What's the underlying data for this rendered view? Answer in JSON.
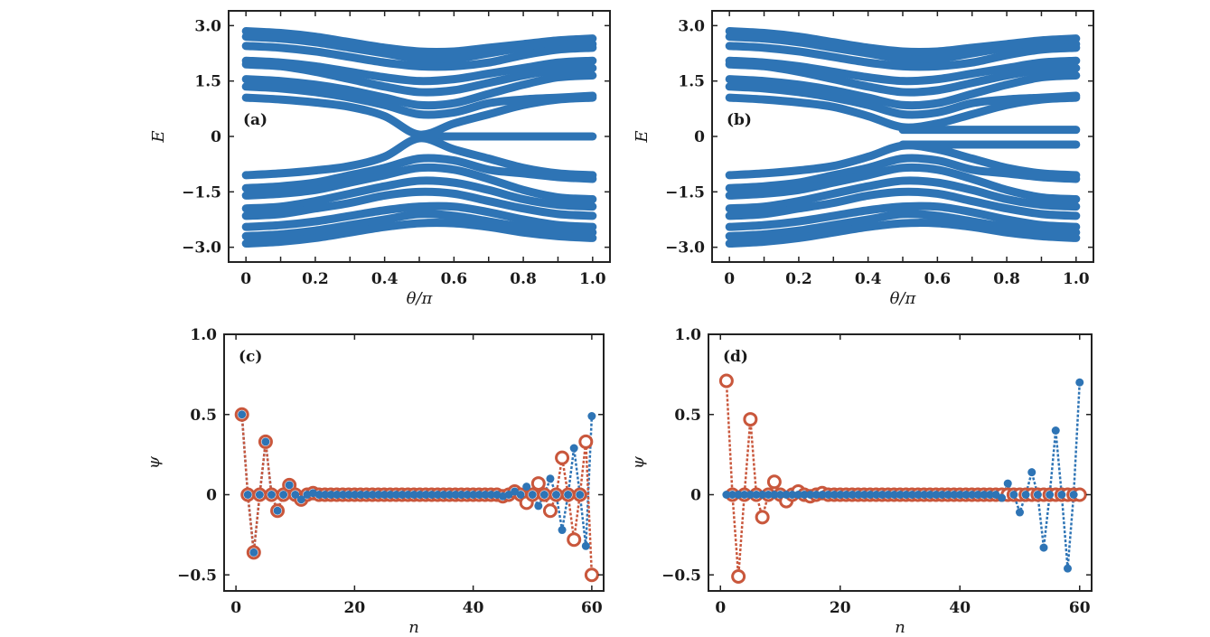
{
  "colors": {
    "blue": "#2e74b5",
    "orange": "#c9573c",
    "axis": "#222222"
  },
  "chart_data": [
    {
      "id": "a",
      "type": "line",
      "panel_label": "(a)",
      "xlabel": "θ/π",
      "ylabel": "E",
      "xlim": [
        -0.05,
        1.05
      ],
      "ylim": [
        -3.4,
        3.4
      ],
      "xticks": [
        0,
        0.2,
        0.4,
        0.6,
        0.8,
        1.0
      ],
      "xtick_labels": [
        "0",
        "0.2",
        "0.4",
        "0.6",
        "0.8",
        "1.0"
      ],
      "yticks": [
        3.0,
        1.5,
        0,
        -1.5,
        -3.0
      ],
      "ytick_labels": [
        "3.0",
        "1.5",
        "0",
        "−1.5",
        "−3.0"
      ],
      "x": [
        0,
        0.1,
        0.2,
        0.3,
        0.4,
        0.5,
        0.6,
        0.7,
        0.8,
        0.9,
        1.0
      ],
      "series": [
        {
          "name": "band1",
          "values": [
            2.85,
            2.8,
            2.7,
            2.55,
            2.4,
            2.3,
            2.3,
            2.4,
            2.5,
            2.6,
            2.65
          ]
        },
        {
          "name": "band2",
          "values": [
            2.7,
            2.65,
            2.55,
            2.4,
            2.25,
            2.1,
            2.1,
            2.25,
            2.4,
            2.5,
            2.5
          ]
        },
        {
          "name": "band3",
          "values": [
            2.45,
            2.4,
            2.3,
            2.15,
            2.0,
            1.9,
            1.9,
            2.0,
            2.2,
            2.35,
            2.4
          ]
        },
        {
          "name": "band4",
          "values": [
            2.05,
            2.0,
            1.9,
            1.75,
            1.6,
            1.5,
            1.55,
            1.7,
            1.85,
            2.0,
            2.05
          ]
        },
        {
          "name": "band5",
          "values": [
            1.95,
            1.9,
            1.75,
            1.55,
            1.35,
            1.2,
            1.25,
            1.45,
            1.65,
            1.8,
            1.85
          ]
        },
        {
          "name": "band6",
          "values": [
            1.55,
            1.5,
            1.4,
            1.25,
            1.05,
            0.85,
            0.9,
            1.15,
            1.4,
            1.6,
            1.65
          ]
        },
        {
          "name": "band7",
          "values": [
            1.35,
            1.3,
            1.2,
            1.05,
            0.85,
            0.6,
            0.65,
            0.9,
            1.0,
            1.05,
            1.1
          ]
        },
        {
          "name": "band8",
          "values": [
            1.05,
            1.0,
            0.92,
            0.8,
            0.55,
            0.05,
            0.35,
            0.6,
            0.85,
            1.0,
            1.05
          ]
        },
        {
          "name": "band9",
          "values": [
            null,
            null,
            null,
            null,
            null,
            0.0,
            0.0,
            0.0,
            0.0,
            0.0,
            0.0
          ]
        },
        {
          "name": "band10",
          "values": [
            -1.05,
            -1.0,
            -0.92,
            -0.8,
            -0.55,
            -0.05,
            -0.35,
            -0.6,
            -0.85,
            -1.0,
            -1.05
          ]
        },
        {
          "name": "band11",
          "values": [
            -1.4,
            -1.35,
            -1.25,
            -1.05,
            -0.85,
            -0.6,
            -0.65,
            -0.9,
            -1.0,
            -1.1,
            -1.15
          ]
        },
        {
          "name": "band12",
          "values": [
            -1.6,
            -1.55,
            -1.45,
            -1.25,
            -1.05,
            -0.85,
            -0.9,
            -1.15,
            -1.45,
            -1.65,
            -1.7
          ]
        },
        {
          "name": "band13",
          "values": [
            -1.95,
            -1.9,
            -1.75,
            -1.55,
            -1.35,
            -1.2,
            -1.25,
            -1.45,
            -1.7,
            -1.85,
            -1.9
          ]
        },
        {
          "name": "band14",
          "values": [
            -2.15,
            -2.1,
            -1.95,
            -1.8,
            -1.6,
            -1.5,
            -1.55,
            -1.75,
            -1.95,
            -2.1,
            -2.15
          ]
        },
        {
          "name": "band15",
          "values": [
            -2.45,
            -2.4,
            -2.3,
            -2.15,
            -2.0,
            -1.9,
            -1.9,
            -2.05,
            -2.25,
            -2.4,
            -2.45
          ]
        },
        {
          "name": "band16",
          "values": [
            -2.7,
            -2.65,
            -2.55,
            -2.4,
            -2.25,
            -2.1,
            -2.15,
            -2.3,
            -2.45,
            -2.55,
            -2.6
          ]
        },
        {
          "name": "band17",
          "values": [
            -2.9,
            -2.85,
            -2.75,
            -2.6,
            -2.45,
            -2.35,
            -2.35,
            -2.45,
            -2.6,
            -2.7,
            -2.75
          ]
        }
      ]
    },
    {
      "id": "b",
      "type": "line",
      "panel_label": "(b)",
      "xlabel": "θ/π",
      "ylabel": "E",
      "xlim": [
        -0.05,
        1.05
      ],
      "ylim": [
        -3.4,
        3.4
      ],
      "xticks": [
        0,
        0.2,
        0.4,
        0.6,
        0.8,
        1.0
      ],
      "xtick_labels": [
        "0",
        "0.2",
        "0.4",
        "0.6",
        "0.8",
        "1.0"
      ],
      "yticks": [
        3.0,
        1.5,
        0,
        -1.5,
        -3.0
      ],
      "ytick_labels": [
        "3.0",
        "1.5",
        "0",
        "−1.5",
        "−3.0"
      ],
      "x": [
        0,
        0.1,
        0.2,
        0.3,
        0.4,
        0.5,
        0.6,
        0.7,
        0.8,
        0.9,
        1.0
      ],
      "series": [
        {
          "name": "band1",
          "values": [
            2.85,
            2.8,
            2.7,
            2.55,
            2.4,
            2.3,
            2.3,
            2.4,
            2.5,
            2.6,
            2.65
          ]
        },
        {
          "name": "band2",
          "values": [
            2.7,
            2.65,
            2.55,
            2.4,
            2.25,
            2.1,
            2.1,
            2.25,
            2.4,
            2.5,
            2.5
          ]
        },
        {
          "name": "band3",
          "values": [
            2.45,
            2.4,
            2.3,
            2.15,
            2.0,
            1.9,
            1.9,
            2.0,
            2.2,
            2.35,
            2.4
          ]
        },
        {
          "name": "band4",
          "values": [
            2.05,
            2.0,
            1.9,
            1.75,
            1.6,
            1.5,
            1.55,
            1.7,
            1.85,
            2.0,
            2.05
          ]
        },
        {
          "name": "band5",
          "values": [
            1.95,
            1.9,
            1.75,
            1.55,
            1.35,
            1.2,
            1.25,
            1.45,
            1.65,
            1.8,
            1.85
          ]
        },
        {
          "name": "band6",
          "values": [
            1.55,
            1.5,
            1.4,
            1.25,
            1.05,
            0.85,
            0.9,
            1.15,
            1.4,
            1.6,
            1.65
          ]
        },
        {
          "name": "band7",
          "values": [
            1.35,
            1.3,
            1.2,
            1.05,
            0.85,
            0.6,
            0.65,
            0.9,
            1.0,
            1.05,
            1.1
          ]
        },
        {
          "name": "band8",
          "values": [
            1.05,
            1.0,
            0.92,
            0.8,
            0.55,
            0.25,
            0.35,
            0.6,
            0.85,
            1.0,
            1.05
          ]
        },
        {
          "name": "band9",
          "values": [
            null,
            null,
            null,
            null,
            null,
            0.18,
            0.18,
            0.18,
            0.18,
            0.18,
            0.18
          ]
        },
        {
          "name": "band10",
          "values": [
            null,
            null,
            null,
            null,
            null,
            -0.22,
            -0.22,
            -0.22,
            -0.22,
            -0.22,
            -0.22
          ]
        },
        {
          "name": "band11",
          "values": [
            -1.05,
            -1.0,
            -0.92,
            -0.8,
            -0.55,
            -0.25,
            -0.35,
            -0.6,
            -0.85,
            -1.0,
            -1.05
          ]
        },
        {
          "name": "band12",
          "values": [
            -1.4,
            -1.35,
            -1.25,
            -1.05,
            -0.85,
            -0.6,
            -0.65,
            -0.9,
            -1.0,
            -1.1,
            -1.15
          ]
        },
        {
          "name": "band13",
          "values": [
            -1.6,
            -1.55,
            -1.45,
            -1.25,
            -1.05,
            -0.85,
            -0.9,
            -1.15,
            -1.45,
            -1.65,
            -1.7
          ]
        },
        {
          "name": "band14",
          "values": [
            -1.95,
            -1.9,
            -1.75,
            -1.55,
            -1.35,
            -1.2,
            -1.25,
            -1.45,
            -1.7,
            -1.85,
            -1.9
          ]
        },
        {
          "name": "band15",
          "values": [
            -2.15,
            -2.1,
            -1.95,
            -1.8,
            -1.6,
            -1.5,
            -1.55,
            -1.75,
            -1.95,
            -2.1,
            -2.15
          ]
        },
        {
          "name": "band16",
          "values": [
            -2.45,
            -2.4,
            -2.3,
            -2.15,
            -2.0,
            -1.9,
            -1.9,
            -2.05,
            -2.25,
            -2.4,
            -2.45
          ]
        },
        {
          "name": "band17",
          "values": [
            -2.7,
            -2.65,
            -2.55,
            -2.4,
            -2.25,
            -2.1,
            -2.15,
            -2.3,
            -2.45,
            -2.55,
            -2.6
          ]
        },
        {
          "name": "band18",
          "values": [
            -2.9,
            -2.85,
            -2.75,
            -2.6,
            -2.45,
            -2.35,
            -2.35,
            -2.45,
            -2.6,
            -2.7,
            -2.75
          ]
        }
      ]
    },
    {
      "id": "c",
      "type": "line",
      "panel_label": "(c)",
      "xlabel": "n",
      "ylabel": "ψ",
      "xlim": [
        -2,
        62
      ],
      "ylim": [
        -0.6,
        1.0
      ],
      "xticks": [
        0,
        20,
        40,
        60
      ],
      "xtick_labels": [
        "0",
        "20",
        "40",
        "60"
      ],
      "yticks": [
        1.0,
        0.5,
        0,
        -0.5
      ],
      "ytick_labels": [
        "1.0",
        "0.5",
        "0",
        "−0.5"
      ],
      "series": [
        {
          "name": "psi_blue",
          "marker": "filled-circle",
          "values": [
            0.5,
            0,
            -0.36,
            0,
            0.33,
            0,
            -0.1,
            0,
            0.06,
            0,
            -0.03,
            0,
            0.01,
            0,
            0,
            0,
            0,
            0,
            0,
            0,
            0,
            0,
            0,
            0,
            0,
            0,
            0,
            0,
            0,
            0,
            0,
            0,
            0,
            0,
            0,
            0,
            0,
            0,
            0,
            0,
            0,
            0,
            0,
            0,
            -0.01,
            0,
            0.02,
            0,
            0.05,
            0,
            -0.07,
            0,
            0.1,
            0,
            -0.22,
            0,
            0.29,
            0,
            -0.32,
            0.49
          ]
        },
        {
          "name": "psi_orange",
          "marker": "open-circle",
          "values": [
            0.5,
            0,
            -0.36,
            0,
            0.33,
            0,
            -0.1,
            0,
            0.06,
            0,
            -0.03,
            0,
            0.01,
            0,
            0,
            0,
            0,
            0,
            0,
            0,
            0,
            0,
            0,
            0,
            0,
            0,
            0,
            0,
            0,
            0,
            0,
            0,
            0,
            0,
            0,
            0,
            0,
            0,
            0,
            0,
            0,
            0,
            0,
            0,
            -0.01,
            0,
            0.02,
            0,
            -0.05,
            0,
            0.07,
            0,
            -0.1,
            0,
            0.23,
            0,
            -0.28,
            0,
            0.33,
            -0.5
          ]
        }
      ]
    },
    {
      "id": "d",
      "type": "line",
      "panel_label": "(d)",
      "xlabel": "n",
      "ylabel": "ψ",
      "xlim": [
        -2,
        62
      ],
      "ylim": [
        -0.6,
        1.0
      ],
      "xticks": [
        0,
        20,
        40,
        60
      ],
      "xtick_labels": [
        "0",
        "20",
        "40",
        "60"
      ],
      "yticks": [
        1.0,
        0.5,
        0,
        -0.5
      ],
      "ytick_labels": [
        "1.0",
        "0.5",
        "0",
        "−0.5"
      ],
      "series": [
        {
          "name": "psi_blue",
          "marker": "filled-circle",
          "values": [
            0,
            0,
            0,
            0,
            0,
            0,
            0,
            0,
            0,
            0,
            0,
            0,
            0,
            0,
            0,
            0,
            0,
            0,
            0,
            0,
            0,
            0,
            0,
            0,
            0,
            0,
            0,
            0,
            0,
            0,
            0,
            0,
            0,
            0,
            0,
            0,
            0,
            0,
            0,
            0,
            0,
            0,
            0,
            0,
            0,
            0,
            -0.02,
            0.07,
            0,
            -0.11,
            0,
            0.14,
            0,
            -0.33,
            0,
            0.4,
            0,
            -0.46,
            0,
            0.7
          ]
        },
        {
          "name": "psi_orange",
          "marker": "open-circle",
          "values": [
            0.71,
            0,
            -0.51,
            0,
            0.47,
            0,
            -0.14,
            0,
            0.08,
            0,
            -0.04,
            0,
            0.02,
            0,
            -0.01,
            0,
            0.01,
            0,
            0,
            0,
            0,
            0,
            0,
            0,
            0,
            0,
            0,
            0,
            0,
            0,
            0,
            0,
            0,
            0,
            0,
            0,
            0,
            0,
            0,
            0,
            0,
            0,
            0,
            0,
            0,
            0,
            0,
            0,
            0,
            0,
            0,
            0,
            0,
            0,
            0,
            0,
            0,
            0,
            0,
            0
          ]
        }
      ]
    }
  ]
}
